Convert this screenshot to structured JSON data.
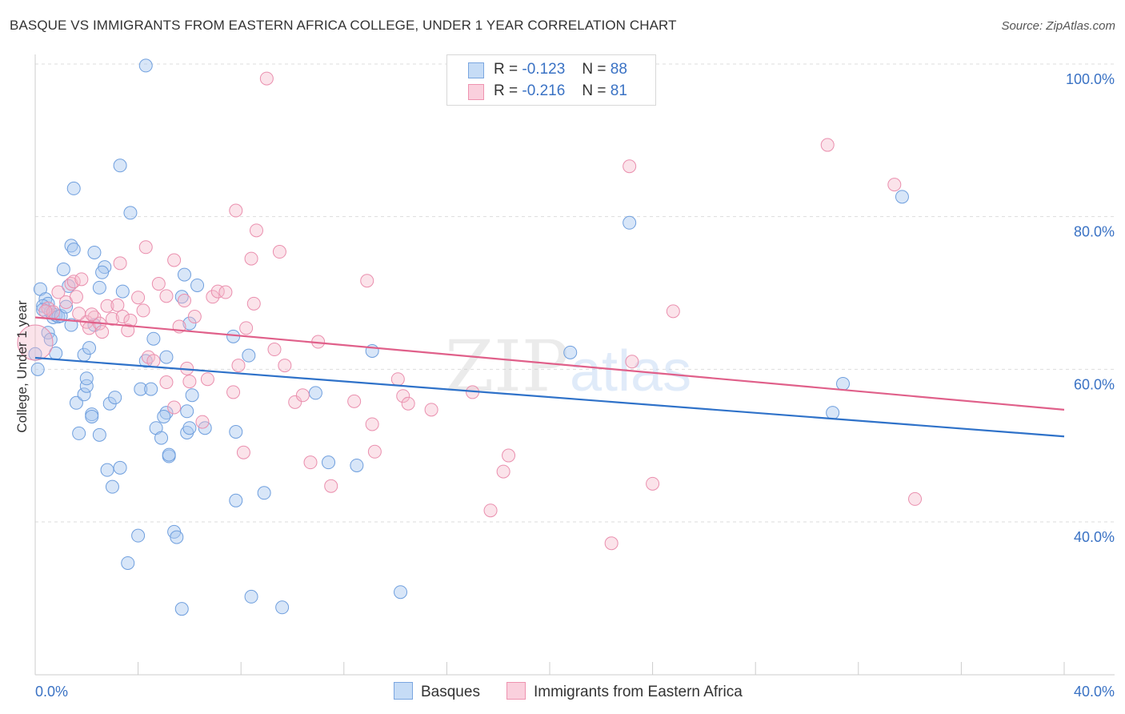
{
  "title": "BASQUE VS IMMIGRANTS FROM EASTERN AFRICA COLLEGE, UNDER 1 YEAR CORRELATION CHART",
  "source": "Source: ZipAtlas.com",
  "watermark": {
    "zip": "ZIP",
    "atlas": "atlas"
  },
  "legend": {
    "rows": [
      {
        "r_label": "R =",
        "r_value": "-0.123",
        "n_label": "N =",
        "n_value": "88"
      },
      {
        "r_label": "R =",
        "r_value": "-0.216",
        "n_label": "N =",
        "n_value": "81"
      }
    ]
  },
  "chart_data": {
    "type": "scatter",
    "title": "BASQUE VS IMMIGRANTS FROM EASTERN AFRICA COLLEGE, UNDER 1 YEAR CORRELATION CHART",
    "xlabel": "",
    "ylabel": "College, Under 1 year",
    "xlim": [
      0,
      40
    ],
    "ylim": [
      20,
      104
    ],
    "x_tick_labels": [
      "0.0%",
      "40.0%"
    ],
    "y_tick_labels": [
      "40.0%",
      "60.0%",
      "80.0%",
      "100.0%"
    ],
    "y_ticks": [
      40,
      60,
      80,
      100
    ],
    "grid": true,
    "legend_position": "top-center",
    "colors": {
      "Basques": "#a9c8f0",
      "Immigrants from Eastern Africa": "#f5b8cb",
      "Basques_line": "#2f72c9",
      "Immigrants_line": "#e0608a",
      "axis_text": "#3a72c4"
    },
    "series": [
      {
        "name": "Basques",
        "r": -0.123,
        "n": 88,
        "trend": {
          "x0": 0,
          "y0": 61.5,
          "x1": 40,
          "y1": 51.2
        },
        "points": [
          [
            4.3,
            99.8
          ],
          [
            0.2,
            70.5
          ],
          [
            0.4,
            69.2
          ],
          [
            0.5,
            68.6
          ],
          [
            0.3,
            68.3
          ],
          [
            0.6,
            67.5
          ],
          [
            0.7,
            66.8
          ],
          [
            0.8,
            67.1
          ],
          [
            0.9,
            66.9
          ],
          [
            0.5,
            64.8
          ],
          [
            0.8,
            62.1
          ],
          [
            0.6,
            63.9
          ],
          [
            1.0,
            67.0
          ],
          [
            1.2,
            68.2
          ],
          [
            1.3,
            70.9
          ],
          [
            1.4,
            65.8
          ],
          [
            1.4,
            76.2
          ],
          [
            1.5,
            75.7
          ],
          [
            1.1,
            73.1
          ],
          [
            2.3,
            75.3
          ],
          [
            2.7,
            73.4
          ],
          [
            2.6,
            72.7
          ],
          [
            2.5,
            70.7
          ],
          [
            1.9,
            61.9
          ],
          [
            2.1,
            62.8
          ],
          [
            2.3,
            65.8
          ],
          [
            3.4,
            70.2
          ],
          [
            1.5,
            83.7
          ],
          [
            3.3,
            86.7
          ],
          [
            3.7,
            80.5
          ],
          [
            1.6,
            55.6
          ],
          [
            1.9,
            56.7
          ],
          [
            2.0,
            57.8
          ],
          [
            2.0,
            58.8
          ],
          [
            2.2,
            54.1
          ],
          [
            2.2,
            53.8
          ],
          [
            1.7,
            51.6
          ],
          [
            2.5,
            51.4
          ],
          [
            2.9,
            55.5
          ],
          [
            3.1,
            56.3
          ],
          [
            2.8,
            46.8
          ],
          [
            3.3,
            47.1
          ],
          [
            3.0,
            44.6
          ],
          [
            4.1,
            57.4
          ],
          [
            4.3,
            61.1
          ],
          [
            4.5,
            57.4
          ],
          [
            4.6,
            64.0
          ],
          [
            5.1,
            61.6
          ],
          [
            4.7,
            52.3
          ],
          [
            4.9,
            51.0
          ],
          [
            5.1,
            54.3
          ],
          [
            5.0,
            53.8
          ],
          [
            5.2,
            48.6
          ],
          [
            5.2,
            48.8
          ],
          [
            5.7,
            69.5
          ],
          [
            6.3,
            71.0
          ],
          [
            5.8,
            72.4
          ],
          [
            6.0,
            66.0
          ],
          [
            5.9,
            54.5
          ],
          [
            5.9,
            51.7
          ],
          [
            6.0,
            52.3
          ],
          [
            6.6,
            52.3
          ],
          [
            6.1,
            56.6
          ],
          [
            4.0,
            38.2
          ],
          [
            5.4,
            38.7
          ],
          [
            5.5,
            38.0
          ],
          [
            3.6,
            34.6
          ],
          [
            5.7,
            28.6
          ],
          [
            7.7,
            64.3
          ],
          [
            8.3,
            61.8
          ],
          [
            7.8,
            51.8
          ],
          [
            7.8,
            42.8
          ],
          [
            8.9,
            43.8
          ],
          [
            8.4,
            30.2
          ],
          [
            9.6,
            28.8
          ],
          [
            10.9,
            56.9
          ],
          [
            11.4,
            47.8
          ],
          [
            12.5,
            47.4
          ],
          [
            13.1,
            62.4
          ],
          [
            14.2,
            30.8
          ],
          [
            20.8,
            62.2
          ],
          [
            23.1,
            79.2
          ],
          [
            31.0,
            54.3
          ],
          [
            31.4,
            58.1
          ],
          [
            33.7,
            82.6
          ],
          [
            0.0,
            62.0
          ],
          [
            0.1,
            60.0
          ],
          [
            0.3,
            67.8
          ]
        ]
      },
      {
        "name": "Immigrants from Eastern Africa",
        "r": -0.216,
        "n": 81,
        "trend": {
          "x0": 0,
          "y0": 66.8,
          "x1": 40,
          "y1": 54.7
        },
        "points": [
          [
            0.0,
            63.5
          ],
          [
            0.5,
            68.0
          ],
          [
            0.7,
            67.5
          ],
          [
            1.2,
            68.8
          ],
          [
            1.4,
            71.2
          ],
          [
            1.5,
            71.5
          ],
          [
            1.6,
            69.5
          ],
          [
            1.8,
            71.8
          ],
          [
            2.0,
            66.2
          ],
          [
            2.1,
            65.4
          ],
          [
            2.3,
            66.8
          ],
          [
            2.5,
            66.0
          ],
          [
            2.6,
            64.9
          ],
          [
            2.8,
            68.3
          ],
          [
            3.0,
            66.6
          ],
          [
            3.2,
            68.4
          ],
          [
            3.3,
            73.9
          ],
          [
            3.4,
            66.9
          ],
          [
            3.7,
            66.4
          ],
          [
            3.6,
            65.1
          ],
          [
            4.0,
            69.4
          ],
          [
            4.2,
            67.7
          ],
          [
            4.3,
            76.0
          ],
          [
            4.4,
            61.6
          ],
          [
            4.6,
            61.1
          ],
          [
            4.8,
            71.2
          ],
          [
            5.1,
            69.6
          ],
          [
            5.1,
            58.3
          ],
          [
            5.4,
            74.3
          ],
          [
            5.4,
            55.0
          ],
          [
            5.6,
            65.6
          ],
          [
            5.8,
            69.0
          ],
          [
            5.9,
            60.1
          ],
          [
            6.0,
            58.4
          ],
          [
            6.2,
            66.9
          ],
          [
            6.5,
            53.1
          ],
          [
            6.7,
            58.7
          ],
          [
            6.9,
            69.5
          ],
          [
            7.1,
            70.2
          ],
          [
            7.4,
            70.1
          ],
          [
            7.7,
            57.0
          ],
          [
            7.8,
            80.8
          ],
          [
            7.9,
            60.5
          ],
          [
            8.2,
            65.4
          ],
          [
            8.1,
            49.1
          ],
          [
            8.4,
            74.5
          ],
          [
            8.5,
            68.6
          ],
          [
            8.6,
            78.2
          ],
          [
            9.0,
            98.1
          ],
          [
            9.3,
            62.6
          ],
          [
            9.5,
            75.4
          ],
          [
            9.7,
            60.5
          ],
          [
            10.1,
            55.7
          ],
          [
            10.4,
            56.6
          ],
          [
            10.7,
            47.8
          ],
          [
            11.0,
            63.6
          ],
          [
            11.5,
            44.7
          ],
          [
            12.4,
            55.8
          ],
          [
            12.9,
            71.6
          ],
          [
            13.1,
            52.8
          ],
          [
            13.2,
            49.2
          ],
          [
            14.1,
            58.7
          ],
          [
            14.3,
            56.5
          ],
          [
            14.5,
            55.5
          ],
          [
            15.4,
            54.7
          ],
          [
            17.0,
            57.0
          ],
          [
            17.7,
            41.5
          ],
          [
            18.2,
            46.6
          ],
          [
            18.4,
            48.7
          ],
          [
            22.4,
            37.2
          ],
          [
            23.1,
            86.6
          ],
          [
            23.2,
            61.0
          ],
          [
            24.0,
            45.0
          ],
          [
            24.8,
            67.6
          ],
          [
            30.8,
            89.4
          ],
          [
            33.4,
            84.2
          ],
          [
            34.2,
            43.0
          ],
          [
            1.7,
            67.3
          ],
          [
            2.2,
            67.2
          ],
          [
            0.4,
            67.6
          ],
          [
            0.9,
            70.1
          ]
        ]
      }
    ]
  }
}
